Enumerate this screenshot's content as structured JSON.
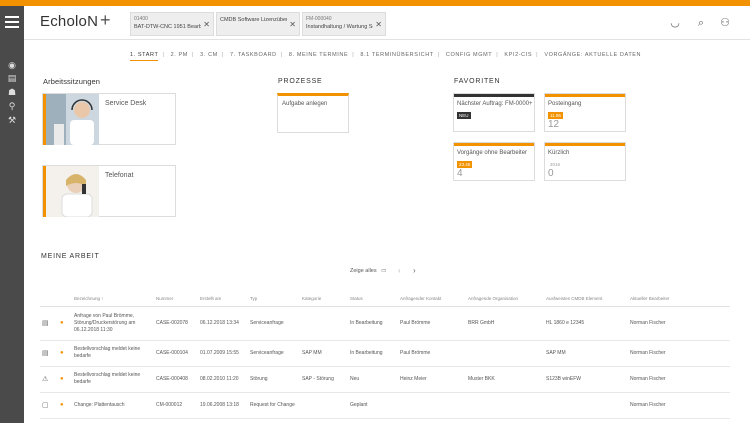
{
  "app": {
    "title": "EcholoN",
    "accent_color": "#f39200",
    "sidebar_color": "#4a4a4a"
  },
  "header": {
    "add_label": "+",
    "tabs": [
      {
        "line1": "01400",
        "line2": "BAT-DTW-CNC 1951 Bearbeiter"
      },
      {
        "line1": "",
        "line2": "CMDB Software Lizenzübersicht"
      },
      {
        "line1": "FM-000040",
        "line2": "Instandhaltung / Wartung Sc..."
      }
    ],
    "icons": [
      "minimize-icon",
      "search-icon",
      "user-settings-icon"
    ]
  },
  "sidebar": {
    "icons": [
      "hamburger-menu-icon",
      "eye-icon",
      "inbox-icon",
      "people-icon",
      "group-search-icon",
      "wrench-icon"
    ]
  },
  "nav": {
    "tabs": [
      "1. START",
      "2. PM",
      "3. CM",
      "7. TASKBOARD",
      "8. MEINE TERMINE",
      "8.1 TERMINÜBERSICHT",
      "CONFIG MGMT",
      "KPI2-CIS",
      "VORGÄNGE: AKTUELLE DATEN"
    ],
    "active_index": 0
  },
  "sections": {
    "arbeitssitzungen": "Arbeitssitzungen",
    "prozesse": "PROZESSE",
    "favoriten": "FAVORITEN",
    "meine_arbeit": "MEINE ARBEIT"
  },
  "work_tiles": [
    {
      "label": "Service Desk"
    },
    {
      "label": "Telefonat"
    }
  ],
  "prozesse": [
    {
      "label": "Aufgabe anlegen"
    }
  ],
  "favoriten": [
    {
      "title": "Nächster Auftrag: FM-0000+",
      "badge": "NEU",
      "count": ""
    },
    {
      "title": "Posteingang",
      "badge": "11.96",
      "count": "12"
    },
    {
      "title": "Vorgänge ohne Bearbeiter",
      "badge": "23.45",
      "count": "4"
    },
    {
      "title": "Kürzlich",
      "badge": "2016",
      "count": "0"
    }
  ],
  "work": {
    "show_all": "Zeige alles",
    "prev": "‹",
    "next": "›",
    "columns": [
      "",
      "",
      "Bezeichnung ↑",
      "Nummer",
      "Erstellt am",
      "Typ",
      "Kategorie",
      "Status",
      "Anfragender Kontakt",
      "Anfragende Organisation",
      "Ausfweistes CMDB Element",
      "Aktueller Bearbeiter"
    ],
    "rows": [
      {
        "name": "Anfrage von Paul Brömme, Störung/Druckerstörung am 06.12.2018 11:30",
        "number": "CASE-002078",
        "created": "06.12.2018 13:34",
        "type": "Serviceanfrage",
        "category": "",
        "status": "In Bearbeitung",
        "contact": "Paul Brömme",
        "org": "BRR GmbH",
        "cmdb": "HL 1860 e 12345",
        "agent": "Norman Fischer"
      },
      {
        "name": "Bestellvorschlag meldet keine bedarfe",
        "number": "CASE-000104",
        "created": "01.07.2009 15:55",
        "type": "Serviceanfrage",
        "category": "SAP MM",
        "status": "In Bearbeitung",
        "contact": "Paul Brömme",
        "org": "",
        "cmdb": "SAP MM",
        "agent": "Norman Fischer"
      },
      {
        "name": "Bestellvorschlag meldet keine bedarfe",
        "number": "CASE-000408",
        "created": "08.02.2010 11:20",
        "type": "Störung",
        "category": "SAP - Störung",
        "status": "Neu",
        "contact": "Heinz Meier",
        "org": "Muster BKK",
        "cmdb": "S123B winEFW",
        "agent": "Norman Fischer"
      },
      {
        "name": "Change: Plattentausch",
        "number": "CM-000012",
        "created": "19.06.2008 13:18",
        "type": "Request for Change",
        "category": "",
        "status": "Geplant",
        "contact": "",
        "org": "",
        "cmdb": "",
        "agent": "Norman Fischer"
      }
    ]
  }
}
